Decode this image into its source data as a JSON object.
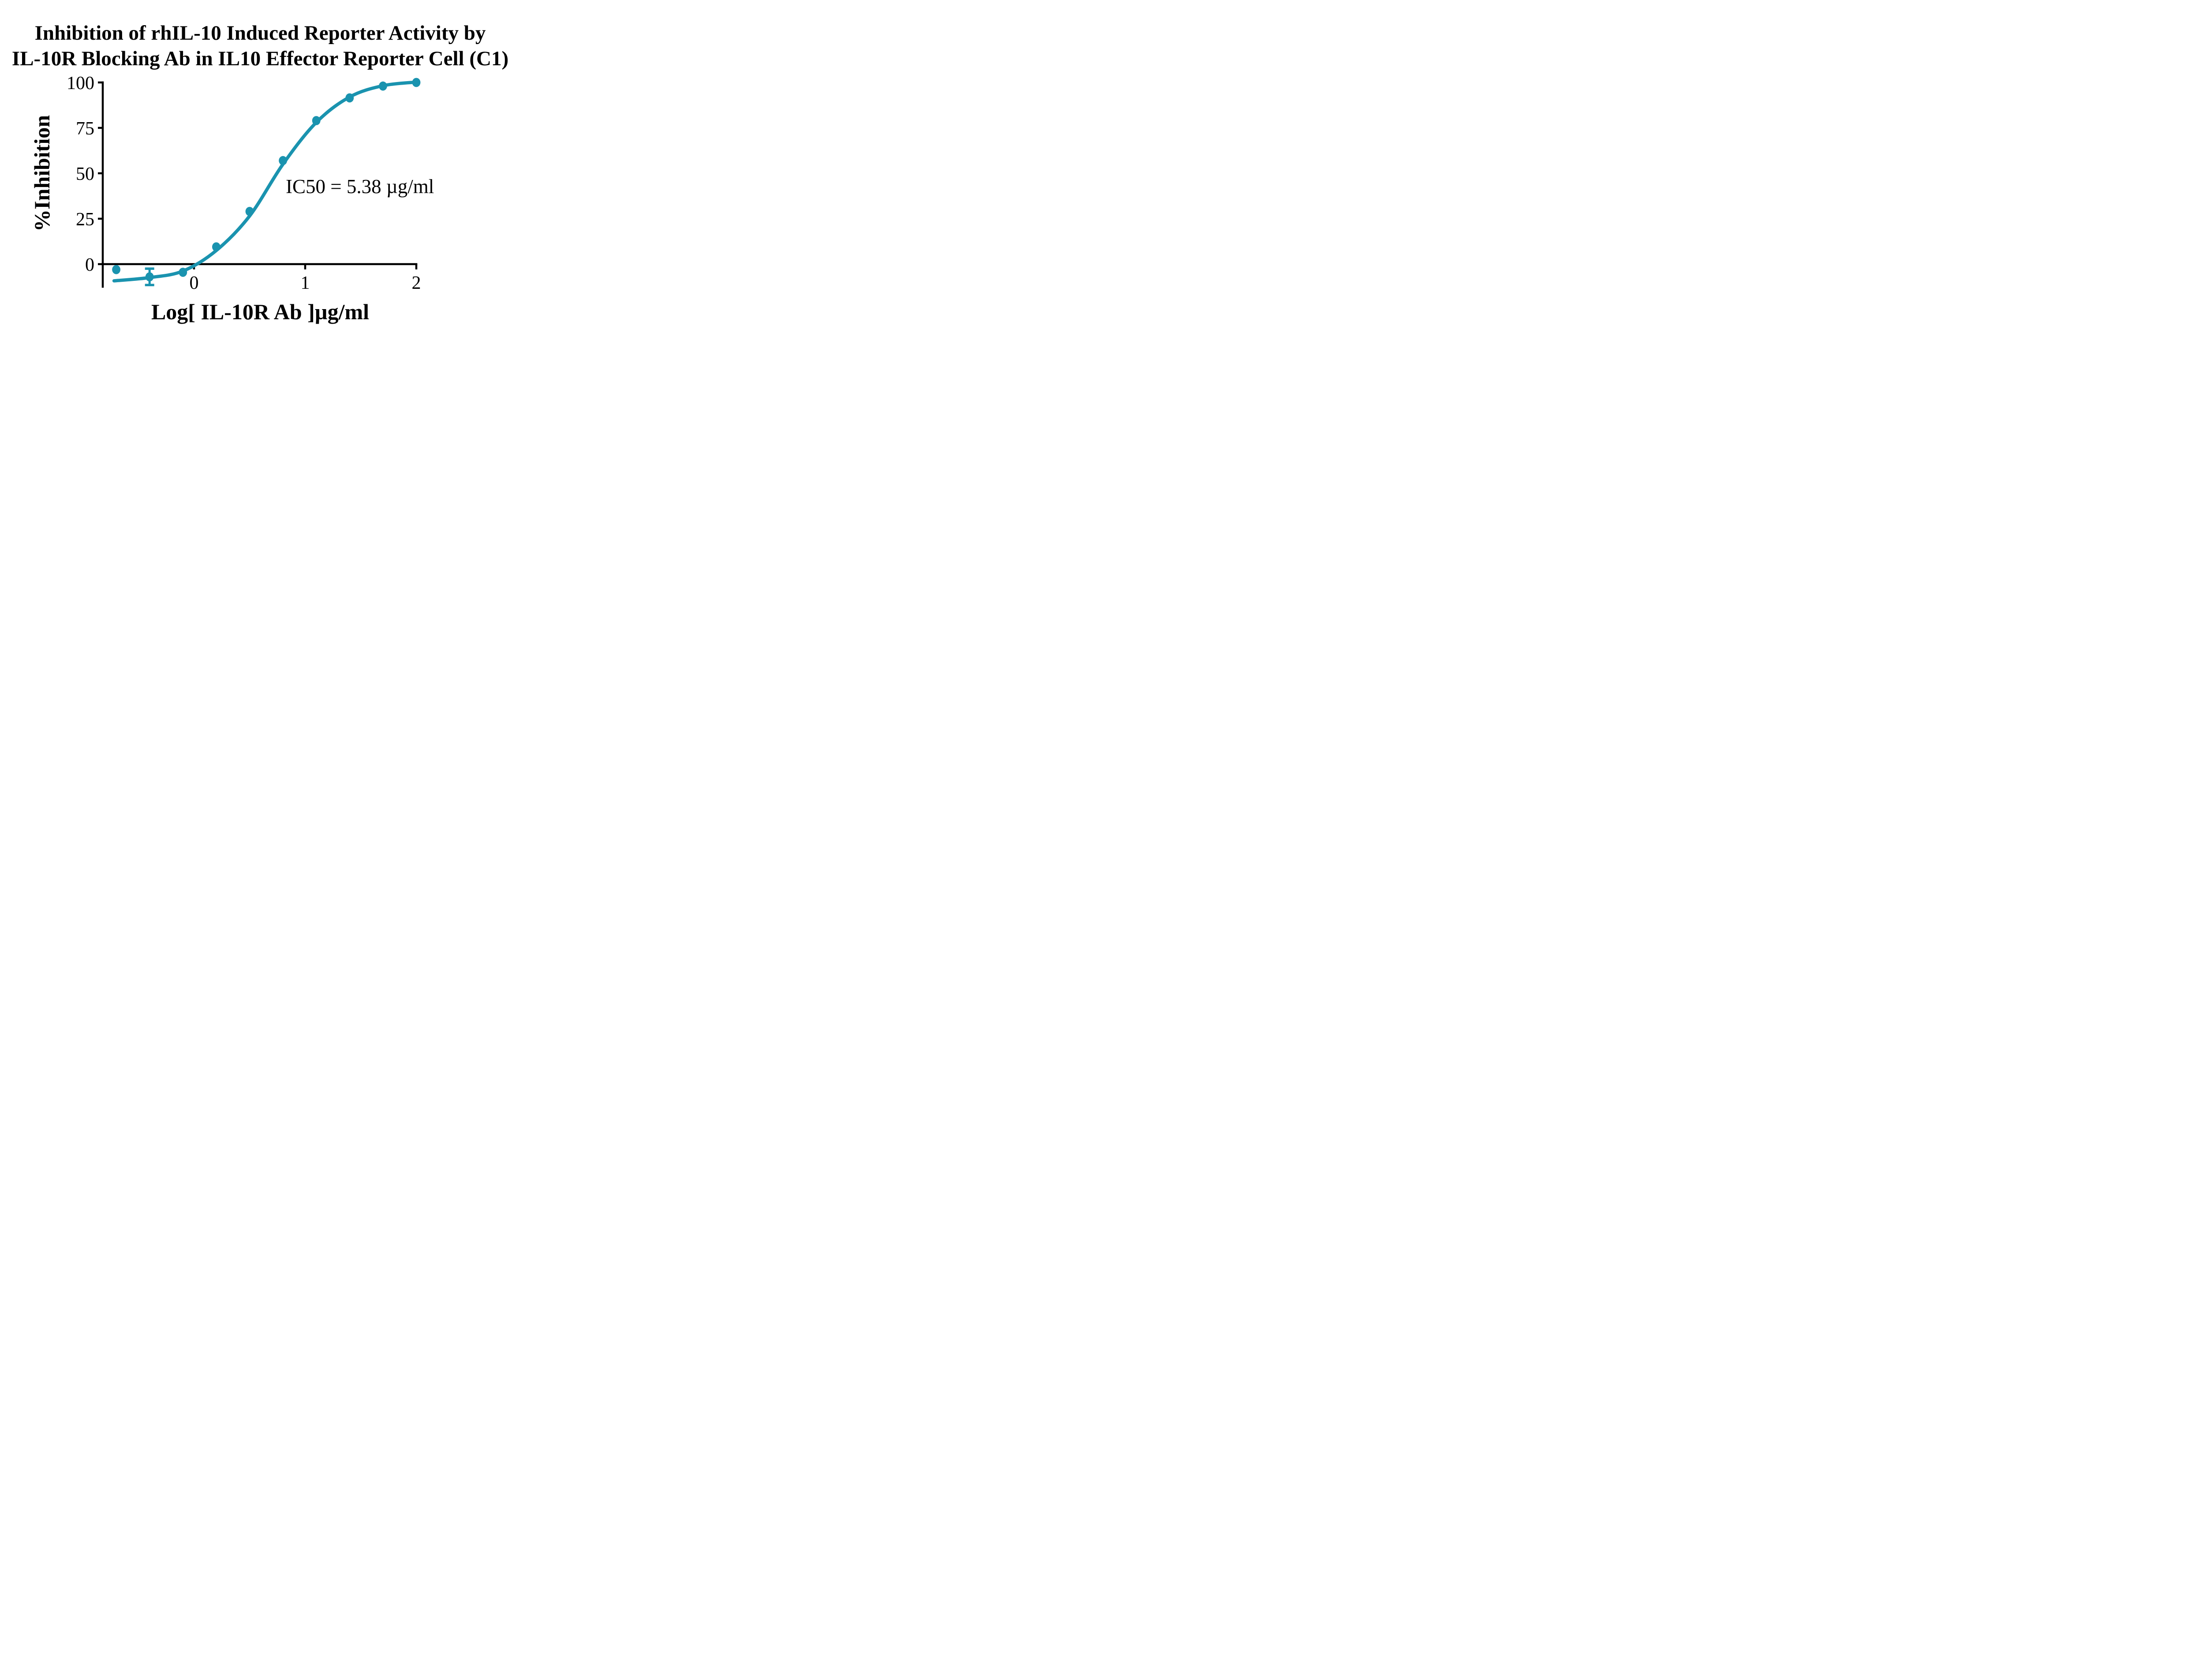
{
  "title": {
    "line1": "Inhibition of rhIL-10 Induced Reporter Activity by",
    "line2": "IL-10R Blocking Ab in IL10 Effector Reporter Cell (C1)"
  },
  "colors": {
    "curve": "#1A93AF",
    "axis": "#000000",
    "background": "#FFFFFF"
  },
  "chart_data": {
    "type": "scatter",
    "title": "Inhibition of rhIL-10 Induced Reporter Activity by IL-10R Blocking Ab in IL10 Effector Reporter Cell (C1)",
    "xlabel": "Log[ IL-10R Ab ]µg/ml",
    "ylabel": "%Inhibition",
    "annotation": "IC50 = 5.38 µg/ml",
    "ic50_ug_ml": 5.38,
    "x": [
      -0.7,
      -0.4,
      -0.1,
      0.2,
      0.5,
      0.8,
      1.1,
      1.4,
      1.7,
      2.0
    ],
    "y": [
      -3,
      -7,
      -4.5,
      9.5,
      29,
      57,
      79,
      91.5,
      98,
      100
    ],
    "error_bars": [
      {
        "x": -0.4,
        "y": -7,
        "plus": 4.5,
        "minus": 4.5
      }
    ],
    "fit_curve": {
      "model": "four-parameter logistic (sigmoidal dose-response fit)",
      "points": [
        [
          -0.72,
          -9.2
        ],
        [
          -0.4,
          -7.4
        ],
        [
          -0.1,
          -3.8
        ],
        [
          0.2,
          7.5
        ],
        [
          0.5,
          26.5
        ],
        [
          0.8,
          55.0
        ],
        [
          1.1,
          78.0
        ],
        [
          1.4,
          92.0
        ],
        [
          1.7,
          98.2
        ],
        [
          2.0,
          100.2
        ]
      ]
    },
    "x_ticks": [
      0,
      1,
      2
    ],
    "y_ticks": [
      0,
      25,
      50,
      75,
      100
    ],
    "xlim": [
      -0.82,
      2.02
    ],
    "ylim": [
      -13,
      100
    ],
    "grid": false,
    "legend": false
  }
}
